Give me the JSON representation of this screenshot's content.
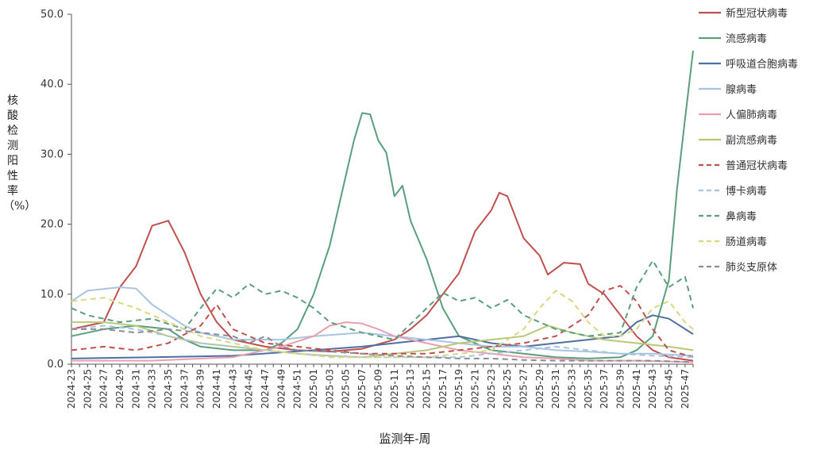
{
  "chart_data": {
    "type": "line",
    "xlabel": "监测年-周",
    "ylabel": "核酸检测阳性率（%）",
    "ylim": [
      0,
      50
    ],
    "yticks": [
      "0.0",
      "10.0",
      "20.0",
      "30.0",
      "40.0",
      "50.0"
    ],
    "x_tick_labels": [
      "2024-23",
      "2024-25",
      "2024-27",
      "2024-29",
      "2024-31",
      "2024-33",
      "2024-35",
      "2024-37",
      "2024-39",
      "2024-41",
      "2024-43",
      "2024-45",
      "2024-47",
      "2024-49",
      "2024-51",
      "2025-01",
      "2025-03",
      "2025-05",
      "2025-07",
      "2025-09",
      "2025-11",
      "2025-13",
      "2025-15",
      "2025-17",
      "2025-19",
      "2025-21",
      "2025-23",
      "2025-25",
      "2025-27",
      "2025-29",
      "2025-31",
      "2025-33",
      "2025-35",
      "2025-37",
      "2025-39",
      "2025-41",
      "2025-43",
      "2025-45",
      "2025-47"
    ],
    "week_count": 78,
    "grid": false,
    "legend": "right",
    "series": [
      {
        "name": "新型冠状病毒",
        "color": "#c0504d",
        "dash": false,
        "points": [
          [
            0,
            5
          ],
          [
            4,
            6
          ],
          [
            6,
            11
          ],
          [
            8,
            14
          ],
          [
            10,
            19.8
          ],
          [
            12,
            20.5
          ],
          [
            14,
            16
          ],
          [
            16,
            10
          ],
          [
            18,
            6
          ],
          [
            20,
            3.5
          ],
          [
            24,
            2.5
          ],
          [
            28,
            2
          ],
          [
            32,
            1.8
          ],
          [
            36,
            2.2
          ],
          [
            40,
            3.5
          ],
          [
            42,
            5
          ],
          [
            44,
            7
          ],
          [
            48,
            13
          ],
          [
            50,
            19
          ],
          [
            52,
            22
          ],
          [
            53,
            24.5
          ],
          [
            54,
            24
          ],
          [
            56,
            18
          ],
          [
            58,
            15.5
          ],
          [
            59,
            12.8
          ],
          [
            61,
            14.5
          ],
          [
            63,
            14.3
          ],
          [
            64,
            11.5
          ],
          [
            66,
            10
          ],
          [
            68,
            7
          ],
          [
            70,
            4
          ],
          [
            72,
            2
          ],
          [
            74,
            1
          ],
          [
            77,
            0.5
          ]
        ]
      },
      {
        "name": "流感病毒",
        "color": "#5a9e7c",
        "dash": false,
        "points": [
          [
            0,
            4
          ],
          [
            2,
            4.5
          ],
          [
            4,
            5
          ],
          [
            8,
            5.5
          ],
          [
            12,
            5
          ],
          [
            14,
            3.5
          ],
          [
            16,
            2.5
          ],
          [
            20,
            2
          ],
          [
            24,
            2
          ],
          [
            26,
            3
          ],
          [
            28,
            5
          ],
          [
            30,
            10
          ],
          [
            32,
            17
          ],
          [
            34,
            27
          ],
          [
            35,
            32
          ],
          [
            36,
            35.9
          ],
          [
            37,
            35.7
          ],
          [
            38,
            32
          ],
          [
            39,
            30.2
          ],
          [
            40,
            24
          ],
          [
            41,
            25.5
          ],
          [
            42,
            20.5
          ],
          [
            44,
            15
          ],
          [
            46,
            8
          ],
          [
            48,
            4
          ],
          [
            52,
            2
          ],
          [
            56,
            1.5
          ],
          [
            60,
            1
          ],
          [
            64,
            0.8
          ],
          [
            68,
            1
          ],
          [
            70,
            2
          ],
          [
            72,
            4
          ],
          [
            74,
            12
          ],
          [
            75,
            25
          ],
          [
            76,
            35
          ],
          [
            77,
            44.8
          ]
        ]
      },
      {
        "name": "呼吸道合胞病毒",
        "color": "#4f6fa0",
        "dash": false,
        "points": [
          [
            0,
            0.8
          ],
          [
            10,
            1
          ],
          [
            20,
            1.2
          ],
          [
            30,
            2
          ],
          [
            36,
            2.5
          ],
          [
            40,
            3
          ],
          [
            44,
            3.5
          ],
          [
            48,
            4
          ],
          [
            52,
            3
          ],
          [
            56,
            2.5
          ],
          [
            60,
            3
          ],
          [
            64,
            3.5
          ],
          [
            68,
            4
          ],
          [
            70,
            6
          ],
          [
            72,
            7
          ],
          [
            74,
            6.5
          ],
          [
            77,
            4.3
          ]
        ]
      },
      {
        "name": "腺病毒",
        "color": "#a8c4e0",
        "dash": false,
        "points": [
          [
            0,
            9
          ],
          [
            2,
            10.5
          ],
          [
            6,
            11
          ],
          [
            8,
            10.8
          ],
          [
            10,
            8.5
          ],
          [
            12,
            7
          ],
          [
            14,
            5.5
          ],
          [
            16,
            4.5
          ],
          [
            20,
            3.5
          ],
          [
            26,
            3.5
          ],
          [
            30,
            4
          ],
          [
            36,
            4.5
          ],
          [
            40,
            4
          ],
          [
            44,
            3.5
          ],
          [
            48,
            3
          ],
          [
            52,
            2.5
          ],
          [
            56,
            2.5
          ],
          [
            60,
            2
          ],
          [
            64,
            1.8
          ],
          [
            68,
            1.5
          ],
          [
            72,
            1.5
          ],
          [
            77,
            1.2
          ]
        ]
      },
      {
        "name": "人偏肺病毒",
        "color": "#e8a0b0",
        "dash": false,
        "points": [
          [
            0,
            0.5
          ],
          [
            10,
            0.5
          ],
          [
            20,
            1
          ],
          [
            26,
            2.5
          ],
          [
            30,
            4
          ],
          [
            32,
            5.5
          ],
          [
            34,
            6
          ],
          [
            36,
            5.8
          ],
          [
            38,
            5
          ],
          [
            40,
            4
          ],
          [
            44,
            3
          ],
          [
            48,
            2
          ],
          [
            52,
            1.5
          ],
          [
            56,
            1
          ],
          [
            60,
            0.8
          ],
          [
            64,
            0.5
          ],
          [
            70,
            0.5
          ],
          [
            77,
            0.3
          ]
        ]
      },
      {
        "name": "副流感病毒",
        "color": "#b8c878",
        "dash": false,
        "points": [
          [
            0,
            6
          ],
          [
            4,
            6
          ],
          [
            8,
            5.5
          ],
          [
            12,
            4
          ],
          [
            16,
            3
          ],
          [
            20,
            2.5
          ],
          [
            24,
            2
          ],
          [
            28,
            1.5
          ],
          [
            32,
            1.2
          ],
          [
            36,
            1
          ],
          [
            40,
            1.5
          ],
          [
            44,
            2
          ],
          [
            48,
            3
          ],
          [
            52,
            3.5
          ],
          [
            56,
            4
          ],
          [
            59,
            5.5
          ],
          [
            62,
            4.5
          ],
          [
            66,
            3.5
          ],
          [
            70,
            3
          ],
          [
            74,
            2.5
          ],
          [
            77,
            2
          ]
        ]
      },
      {
        "name": "普通冠状病毒",
        "color": "#c0504d",
        "dash": true,
        "points": [
          [
            0,
            2
          ],
          [
            4,
            2.5
          ],
          [
            8,
            2
          ],
          [
            12,
            3
          ],
          [
            16,
            5.5
          ],
          [
            18,
            8.5
          ],
          [
            20,
            5
          ],
          [
            24,
            3
          ],
          [
            28,
            2.5
          ],
          [
            32,
            2
          ],
          [
            36,
            1.5
          ],
          [
            40,
            1.5
          ],
          [
            44,
            1.5
          ],
          [
            48,
            2
          ],
          [
            52,
            2.5
          ],
          [
            56,
            3
          ],
          [
            60,
            4
          ],
          [
            64,
            7
          ],
          [
            66,
            10.5
          ],
          [
            68,
            11.2
          ],
          [
            70,
            9
          ],
          [
            72,
            5
          ],
          [
            74,
            2
          ],
          [
            77,
            1
          ]
        ]
      },
      {
        "name": "博卡病毒",
        "color": "#a8c4e0",
        "dash": true,
        "points": [
          [
            0,
            5
          ],
          [
            4,
            5.5
          ],
          [
            8,
            5
          ],
          [
            12,
            4
          ],
          [
            16,
            3
          ],
          [
            20,
            2.5
          ],
          [
            24,
            2
          ],
          [
            28,
            1.5
          ],
          [
            32,
            1.2
          ],
          [
            36,
            1
          ],
          [
            40,
            1
          ],
          [
            44,
            1
          ],
          [
            48,
            1
          ],
          [
            52,
            1.5
          ],
          [
            56,
            2
          ],
          [
            60,
            2.5
          ],
          [
            64,
            2
          ],
          [
            68,
            1.5
          ],
          [
            72,
            1.2
          ],
          [
            77,
            1
          ]
        ]
      },
      {
        "name": "鼻病毒",
        "color": "#5a9e7c",
        "dash": true,
        "points": [
          [
            0,
            8
          ],
          [
            2,
            7
          ],
          [
            6,
            6
          ],
          [
            10,
            6.5
          ],
          [
            14,
            5
          ],
          [
            16,
            8
          ],
          [
            18,
            10.8
          ],
          [
            20,
            9.5
          ],
          [
            22,
            11.5
          ],
          [
            24,
            10
          ],
          [
            26,
            10.5
          ],
          [
            28,
            9.5
          ],
          [
            30,
            8
          ],
          [
            32,
            6
          ],
          [
            36,
            4.5
          ],
          [
            40,
            3.5
          ],
          [
            44,
            8
          ],
          [
            46,
            10.2
          ],
          [
            48,
            9
          ],
          [
            50,
            9.5
          ],
          [
            52,
            8
          ],
          [
            54,
            9.2
          ],
          [
            56,
            7
          ],
          [
            60,
            5
          ],
          [
            64,
            4
          ],
          [
            68,
            4.5
          ],
          [
            70,
            11
          ],
          [
            72,
            14.8
          ],
          [
            74,
            11
          ],
          [
            76,
            12.5
          ],
          [
            77,
            8
          ]
        ]
      },
      {
        "name": "肠道病毒",
        "color": "#d8d880",
        "dash": true,
        "points": [
          [
            0,
            9
          ],
          [
            4,
            9.5
          ],
          [
            8,
            8
          ],
          [
            12,
            6
          ],
          [
            16,
            4
          ],
          [
            20,
            3
          ],
          [
            24,
            2
          ],
          [
            28,
            1.5
          ],
          [
            32,
            1
          ],
          [
            36,
            1
          ],
          [
            40,
            1
          ],
          [
            44,
            1
          ],
          [
            48,
            1.5
          ],
          [
            52,
            2
          ],
          [
            56,
            5
          ],
          [
            58,
            8
          ],
          [
            60,
            10.5
          ],
          [
            62,
            9
          ],
          [
            64,
            6
          ],
          [
            66,
            4
          ],
          [
            68,
            4
          ],
          [
            70,
            5
          ],
          [
            72,
            8
          ],
          [
            74,
            9
          ],
          [
            76,
            6
          ],
          [
            77,
            5
          ]
        ]
      },
      {
        "name": "肺炎支原体",
        "color": "#8a8a9a",
        "dash": true,
        "points": [
          [
            0,
            5
          ],
          [
            4,
            5
          ],
          [
            8,
            4.5
          ],
          [
            12,
            5
          ],
          [
            16,
            4.5
          ],
          [
            20,
            4
          ],
          [
            22,
            3
          ],
          [
            24,
            4
          ],
          [
            26,
            2.5
          ],
          [
            28,
            2
          ],
          [
            32,
            1.8
          ],
          [
            36,
            1.5
          ],
          [
            40,
            1.2
          ],
          [
            44,
            1
          ],
          [
            48,
            0.8
          ],
          [
            52,
            0.8
          ],
          [
            56,
            0.6
          ],
          [
            60,
            0.5
          ],
          [
            64,
            0.5
          ],
          [
            68,
            0.5
          ],
          [
            72,
            0.5
          ],
          [
            77,
            0.3
          ]
        ]
      }
    ]
  }
}
